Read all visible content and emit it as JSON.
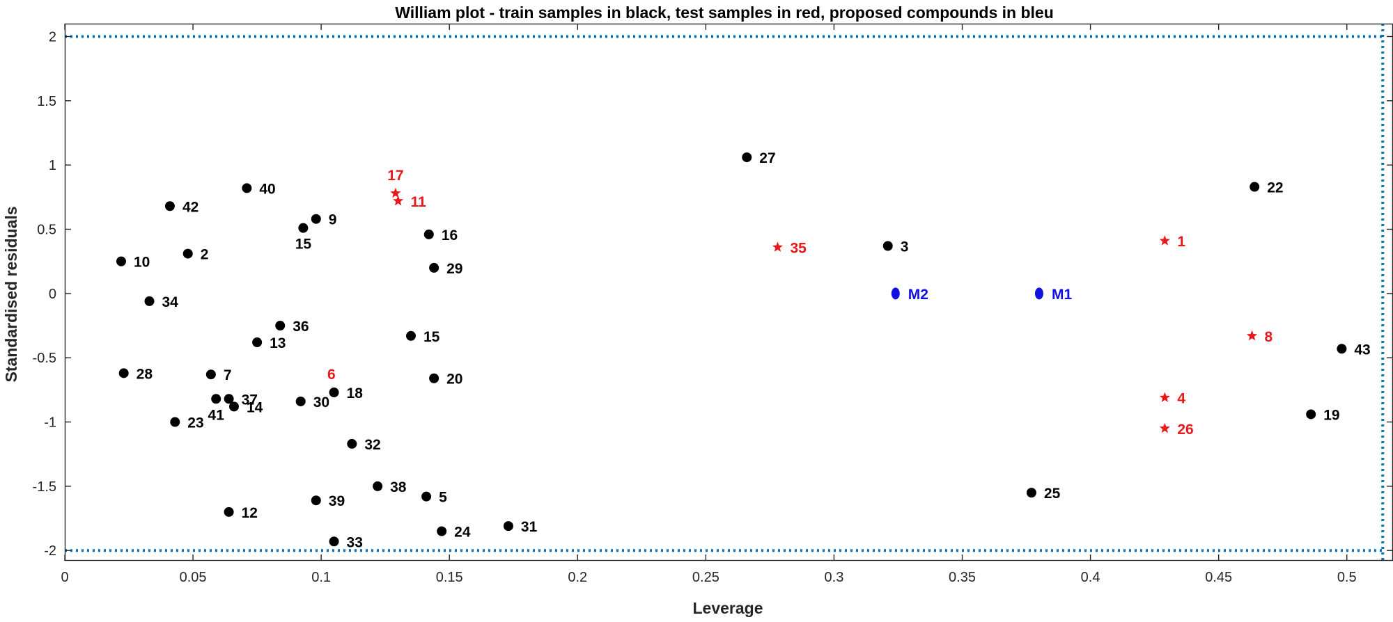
{
  "chart_data": {
    "type": "scatter",
    "title": "William plot - train samples in black, test samples in red, proposed compounds in bleu",
    "xlabel": "Leverage",
    "ylabel": "Standardised residuals",
    "xlim": [
      0,
      0.518
    ],
    "ylim": [
      -2.08,
      2.1
    ],
    "xticks": [
      0,
      0.05,
      0.1,
      0.15,
      0.2,
      0.25,
      0.3,
      0.35,
      0.4,
      0.45,
      0.5
    ],
    "xtick_labels": [
      "0",
      "0.05",
      "0.1",
      "0.15",
      "0.2",
      "0.25",
      "0.3",
      "0.35",
      "0.4",
      "0.45",
      "0.5"
    ],
    "yticks": [
      -2,
      -1.5,
      -1,
      -0.5,
      0,
      0.5,
      1,
      1.5,
      2
    ],
    "ytick_labels": [
      "-2",
      "-1.5",
      "-1",
      "-0.5",
      "0",
      "0.5",
      "1",
      "1.5",
      "2"
    ],
    "grid": false,
    "reference_lines": {
      "residual_limits": [
        -2,
        2
      ],
      "leverage_warning": 0.514,
      "style": "dotted",
      "color": "#0072bd"
    },
    "colors": {
      "train": "#000000",
      "test": "#e8191a",
      "proposed": "#1010e0"
    },
    "series": [
      {
        "name": "train samples",
        "marker": "circle",
        "color": "#000000",
        "points": [
          {
            "label": "27",
            "x": 0.266,
            "y": 1.06
          },
          {
            "label": "40",
            "x": 0.071,
            "y": 0.82
          },
          {
            "label": "42",
            "x": 0.041,
            "y": 0.68
          },
          {
            "label": "9",
            "x": 0.098,
            "y": 0.58
          },
          {
            "label": "15",
            "x": 0.093,
            "y": 0.51,
            "label_pos": "below"
          },
          {
            "label": "16",
            "x": 0.142,
            "y": 0.46
          },
          {
            "label": "10",
            "x": 0.022,
            "y": 0.25
          },
          {
            "label": "2",
            "x": 0.048,
            "y": 0.31
          },
          {
            "label": "29",
            "x": 0.144,
            "y": 0.2
          },
          {
            "label": "3",
            "x": 0.321,
            "y": 0.37
          },
          {
            "label": "22",
            "x": 0.464,
            "y": 0.83
          },
          {
            "label": "34",
            "x": 0.033,
            "y": -0.06
          },
          {
            "label": "36",
            "x": 0.084,
            "y": -0.25
          },
          {
            "label": "13",
            "x": 0.075,
            "y": -0.38
          },
          {
            "label": "15",
            "x": 0.135,
            "y": -0.33
          },
          {
            "label": "28",
            "x": 0.023,
            "y": -0.62
          },
          {
            "label": "7",
            "x": 0.057,
            "y": -0.63
          },
          {
            "label": "37",
            "x": 0.064,
            "y": -0.82
          },
          {
            "label": "41",
            "x": 0.059,
            "y": -0.82,
            "label_pos": "below"
          },
          {
            "label": "14",
            "x": 0.066,
            "y": -0.88
          },
          {
            "label": "23",
            "x": 0.043,
            "y": -1.0
          },
          {
            "label": "30",
            "x": 0.092,
            "y": -0.84
          },
          {
            "label": "18",
            "x": 0.105,
            "y": -0.77
          },
          {
            "label": "20",
            "x": 0.144,
            "y": -0.66
          },
          {
            "label": "32",
            "x": 0.112,
            "y": -1.17
          },
          {
            "label": "38",
            "x": 0.122,
            "y": -1.5
          },
          {
            "label": "5",
            "x": 0.141,
            "y": -1.58
          },
          {
            "label": "39",
            "x": 0.098,
            "y": -1.61
          },
          {
            "label": "12",
            "x": 0.064,
            "y": -1.7
          },
          {
            "label": "33",
            "x": 0.105,
            "y": -1.93
          },
          {
            "label": "24",
            "x": 0.147,
            "y": -1.85
          },
          {
            "label": "31",
            "x": 0.173,
            "y": -1.81
          },
          {
            "label": "25",
            "x": 0.377,
            "y": -1.55
          },
          {
            "label": "43",
            "x": 0.498,
            "y": -0.43
          },
          {
            "label": "19",
            "x": 0.486,
            "y": -0.94
          }
        ]
      },
      {
        "name": "test samples",
        "marker": "star",
        "color": "#e8191a",
        "points": [
          {
            "label": "17",
            "x": 0.129,
            "y": 0.78,
            "label_pos": "above"
          },
          {
            "label": "11",
            "x": 0.13,
            "y": 0.72
          },
          {
            "label": "35",
            "x": 0.278,
            "y": 0.36
          },
          {
            "label": "1",
            "x": 0.429,
            "y": 0.41
          },
          {
            "label": "8",
            "x": 0.463,
            "y": -0.33
          },
          {
            "label": "4",
            "x": 0.429,
            "y": -0.81
          },
          {
            "label": "26",
            "x": 0.429,
            "y": -1.05
          },
          {
            "label": "6",
            "x": 0.104,
            "y": -0.77,
            "label_pos": "above",
            "marker_hidden": true
          }
        ]
      },
      {
        "name": "proposed compounds",
        "marker": "ellipse",
        "color": "#1010e0",
        "points": [
          {
            "label": "M2",
            "x": 0.324,
            "y": 0.0
          },
          {
            "label": "M1",
            "x": 0.38,
            "y": 0.0
          }
        ]
      }
    ]
  }
}
